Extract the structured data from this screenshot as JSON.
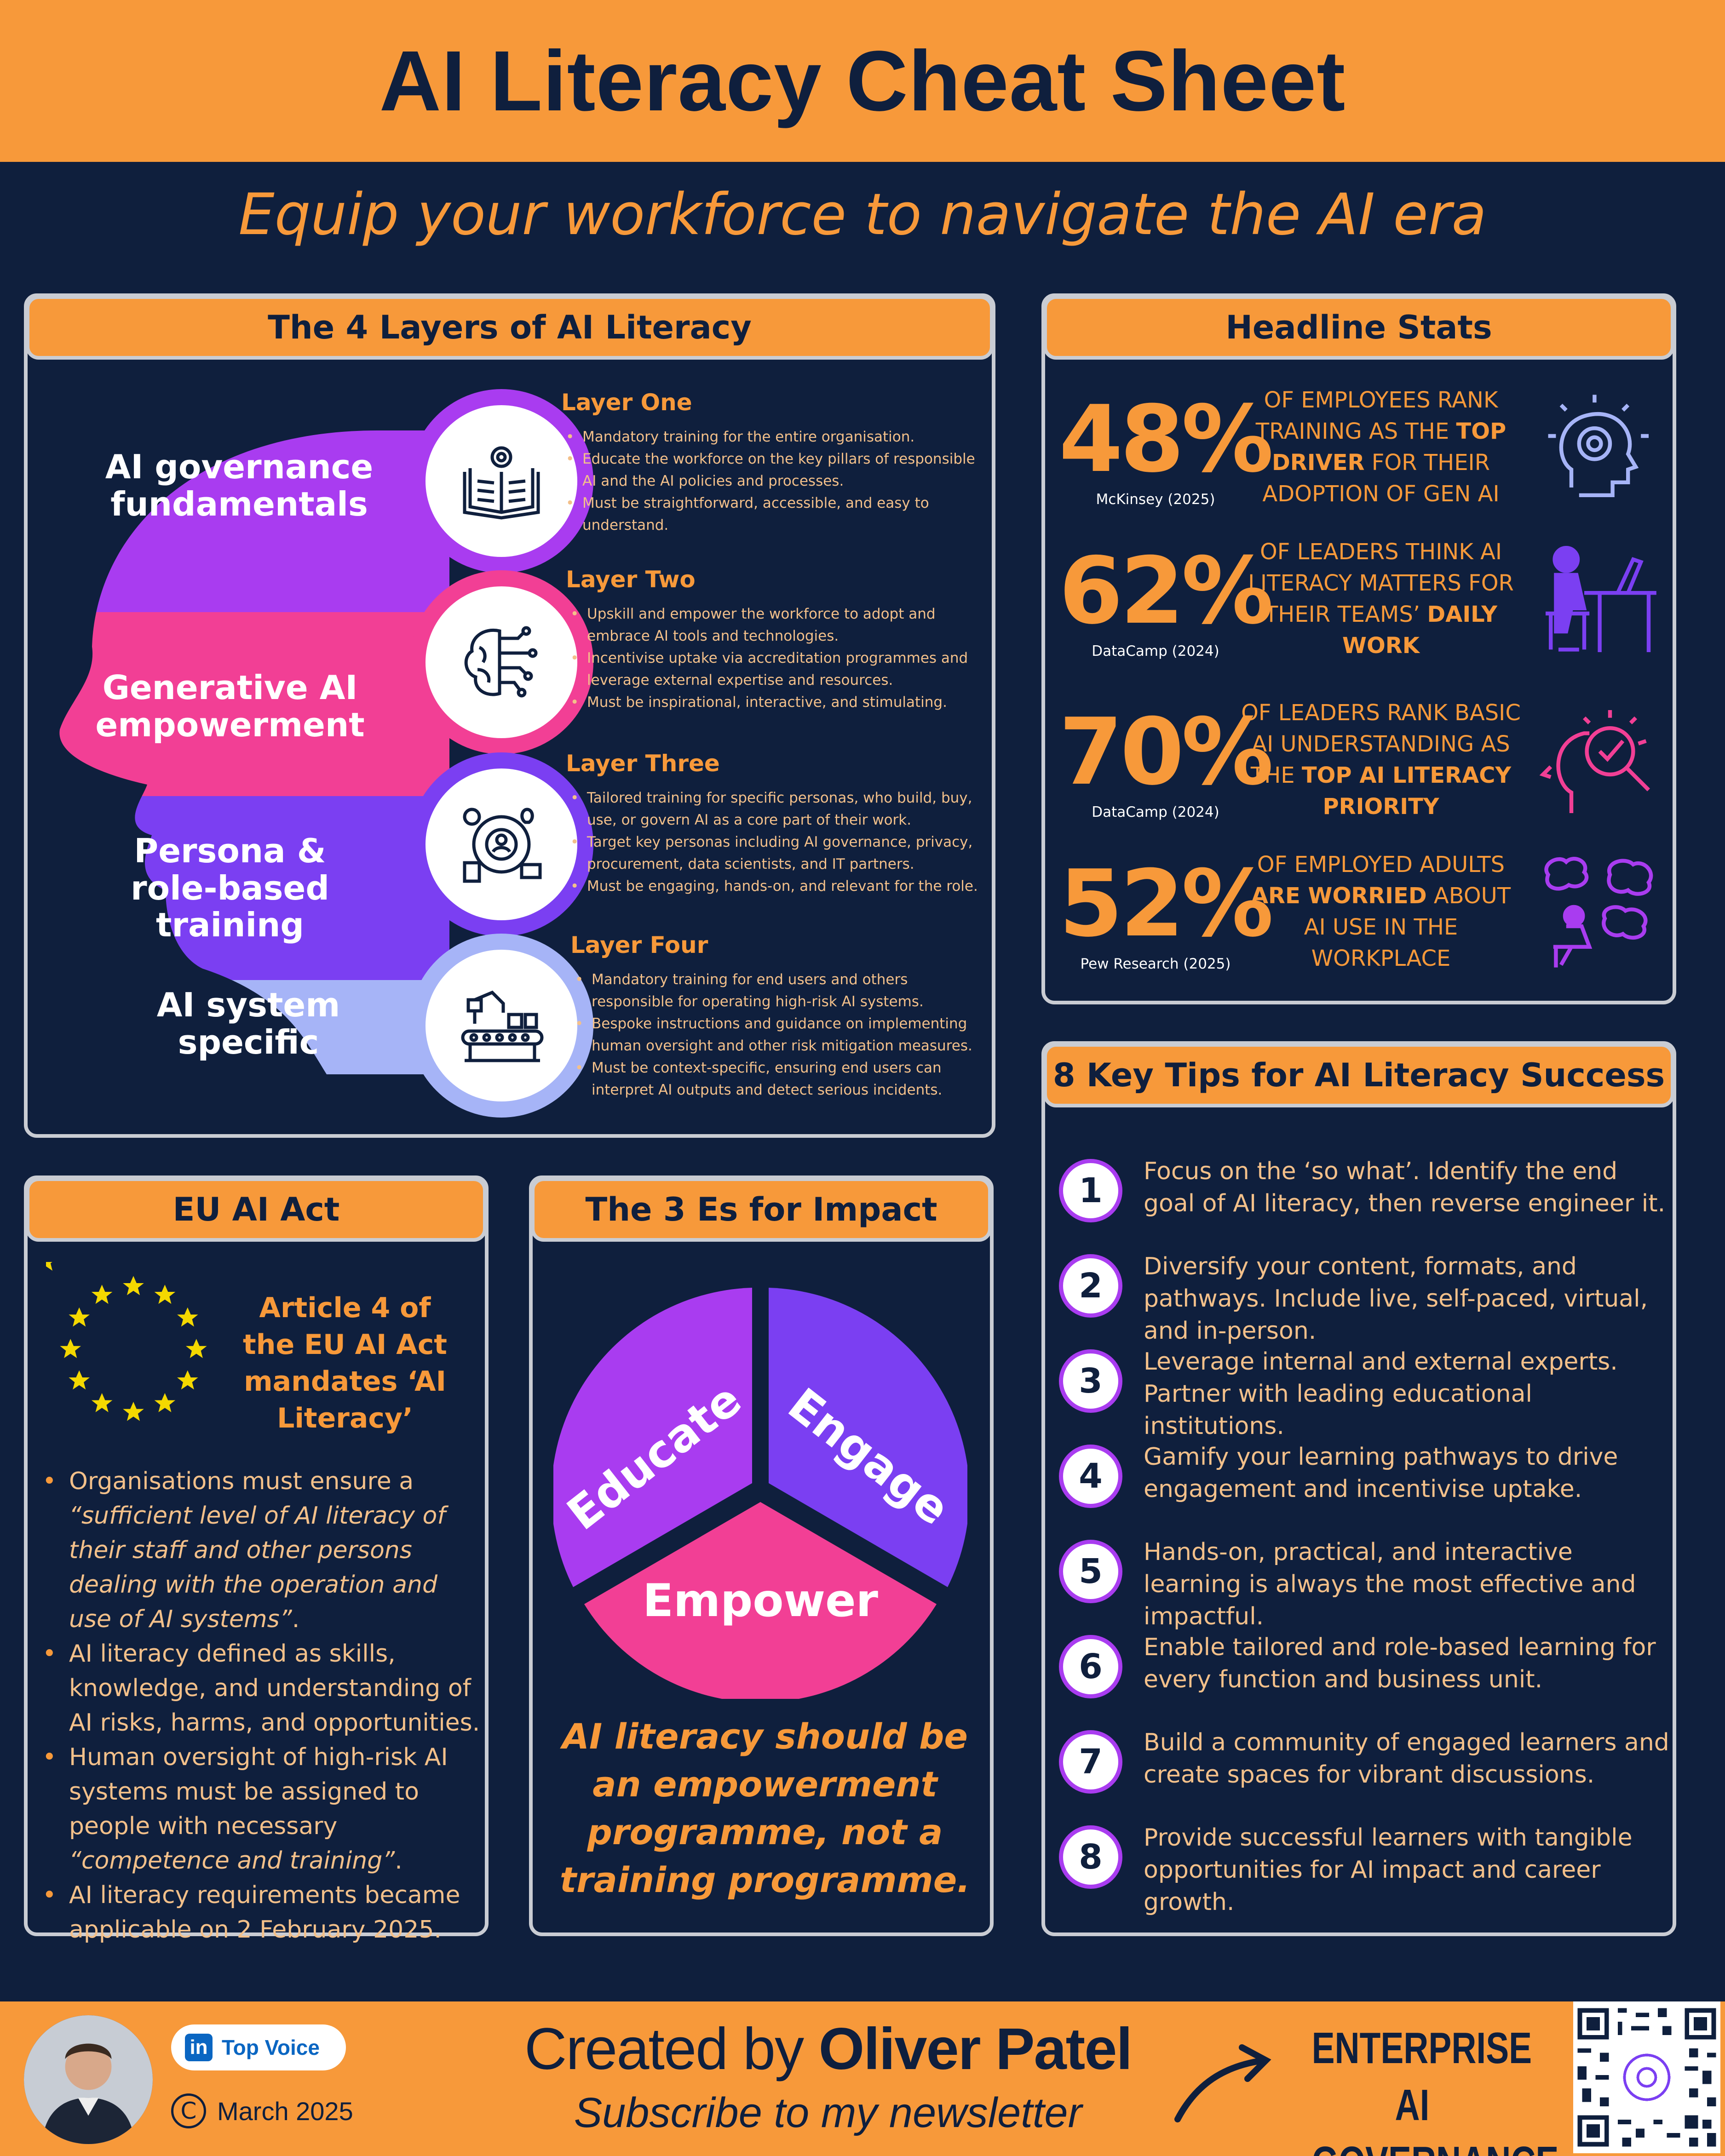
{
  "title": "AI Literacy Cheat Sheet",
  "subtitle": "Equip your workforce to navigate the AI era",
  "layers": {
    "heading": "The 4 Layers of AI Literacy",
    "items": [
      {
        "band_label": "AI governance fundamentals",
        "title": "Layer One",
        "icon": "book-gear-icon",
        "bullets": [
          "Mandatory training for the entire organisation.",
          "Educate the workforce on the key pillars of responsible AI and the AI policies and processes.",
          "Must be straightforward, accessible, and easy to understand."
        ]
      },
      {
        "band_label": "Generative AI empowerment",
        "title": "Layer Two",
        "icon": "brain-circuit-icon",
        "bullets": [
          "Upskill and empower the workforce to adopt and embrace AI tools and technologies.",
          "Incentivise uptake via accreditation programmes and leverage external expertise and resources.",
          "Must be inspirational, interactive, and stimulating."
        ]
      },
      {
        "band_label": "Persona & role-based training",
        "title": "Layer Three",
        "icon": "persona-hub-icon",
        "bullets": [
          "Tailored training for specific personas, who build, buy, use, or govern AI as a core part of their work.",
          "Target key personas including AI governance, privacy, procurement, data scientists, and IT partners.",
          "Must be engaging, hands-on, and relevant for the role."
        ]
      },
      {
        "band_label": "AI system specific",
        "title": "Layer Four",
        "icon": "conveyor-robot-icon",
        "bullets": [
          "Mandatory training for end users and others responsible for operating high-risk AI systems.",
          "Bespoke instructions and guidance on implementing human oversight and other risk mitigation measures.",
          "Must be context-specific, ensuring end users can interpret AI outputs and detect serious incidents."
        ]
      }
    ],
    "colors": [
      "#a93cf0",
      "#f23f95",
      "#7b3ff2",
      "#a6b4f7"
    ]
  },
  "stats": {
    "heading": "Headline Stats",
    "items": [
      {
        "pct": "48%",
        "source": "McKinsey (2025)",
        "pre": "OF EMPLOYEES RANK TRAINING AS THE ",
        "bold": "TOP DRIVER",
        "post": " FOR THEIR ADOPTION OF GEN AI",
        "icon": "head-gear-bulb-icon"
      },
      {
        "pct": "62%",
        "source": "DataCamp (2024)",
        "pre": "OF LEADERS THINK AI LITERACY MATTERS FOR THEIR TEAMS’ ",
        "bold": "DAILY WORK",
        "post": "",
        "icon": "person-at-desk-icon"
      },
      {
        "pct": "70%",
        "source": "DataCamp (2024)",
        "pre": "OF LEADERS RANK BASIC AI UNDERSTANDING AS THE ",
        "bold": "TOP AI LITERACY PRIORITY",
        "post": "",
        "icon": "head-magnifier-icon"
      },
      {
        "pct": "52%",
        "source": "Pew Research (2025)",
        "pre": "OF EMPLOYED ADULTS ",
        "bold": "ARE WORRIED",
        "post": " ABOUT AI USE IN THE WORKPLACE",
        "icon": "worried-person-icon"
      }
    ]
  },
  "eu": {
    "heading": "EU AI Act",
    "lead": "Article 4 of the EU AI Act mandates ‘AI Literacy’",
    "bullets": [
      {
        "text": "Organisations must ensure a ",
        "quote": "“sufficient level of AI literacy of their staff and other persons dealing with the operation and use of AI systems”",
        "end": "."
      },
      {
        "text": "AI literacy defined as skills, knowledge, and understanding of AI risks, harms, and opportunities.",
        "quote": "",
        "end": ""
      },
      {
        "text": "Human oversight of high-risk AI systems must be assigned to people with necessary ",
        "quote": "“competence and training”",
        "end": "."
      },
      {
        "text": "AI literacy requirements became applicable on 2 February 2025.",
        "quote": "",
        "end": ""
      }
    ]
  },
  "es": {
    "heading": "The 3 Es for Impact",
    "segments": [
      "Educate",
      "Engage",
      "Empower"
    ],
    "colors": [
      "#a93cf0",
      "#7b3ff2",
      "#f23f95"
    ],
    "quote": "AI literacy should be an empowerment programme, not a training programme."
  },
  "tips": {
    "heading": "8 Key Tips for AI Literacy Success",
    "items": [
      {
        "n": "1",
        "text": "Focus on the ‘so what’. Identify the end goal of AI literacy, then reverse engineer it."
      },
      {
        "n": "2",
        "text": "Diversify your content, formats, and pathways. Include live, self-paced, virtual, and in-person."
      },
      {
        "n": "3",
        "text": "Leverage internal and external experts. Partner with leading educational institutions."
      },
      {
        "n": "4",
        "text": "Gamify your learning pathways to drive engagement and incentivise uptake."
      },
      {
        "n": "5",
        "text": "Hands-on, practical, and interactive learning is always the most effective and impactful."
      },
      {
        "n": "6",
        "text": "Enable tailored and role-based learning for every function and business unit."
      },
      {
        "n": "7",
        "text": "Build a community of engaged learners and create spaces for vibrant discussions."
      },
      {
        "n": "8",
        "text": "Provide successful learners with tangible opportunities for AI impact and career growth."
      }
    ]
  },
  "footer": {
    "badge_icon": "in",
    "badge": "Top Voice",
    "copyright_symbol": "C",
    "date": "March 2025",
    "created_pre": "Created by ",
    "created_name": "Oliver Patel",
    "newsletter": "Subscribe to my newsletter",
    "brand_line1": "ENTERPRISE",
    "brand_line2": "AI GOVERNANCE"
  },
  "palette": {
    "navy": "#0f1f3d",
    "orange": "#f7993a",
    "purple": "#a93cf0",
    "pink": "#f23f95",
    "violet": "#7b3ff2",
    "lavender": "#a6b4f7"
  }
}
